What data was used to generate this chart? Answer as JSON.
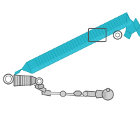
{
  "bg_color": "#ffffff",
  "rack_color": "#29b8cc",
  "rack_dark": "#1a9aaa",
  "rack_light": "#45cce0",
  "gray_fill": "#c8c8c8",
  "gray_dark": "#888888",
  "outline": "#555555",
  "line_color": "#777777"
}
